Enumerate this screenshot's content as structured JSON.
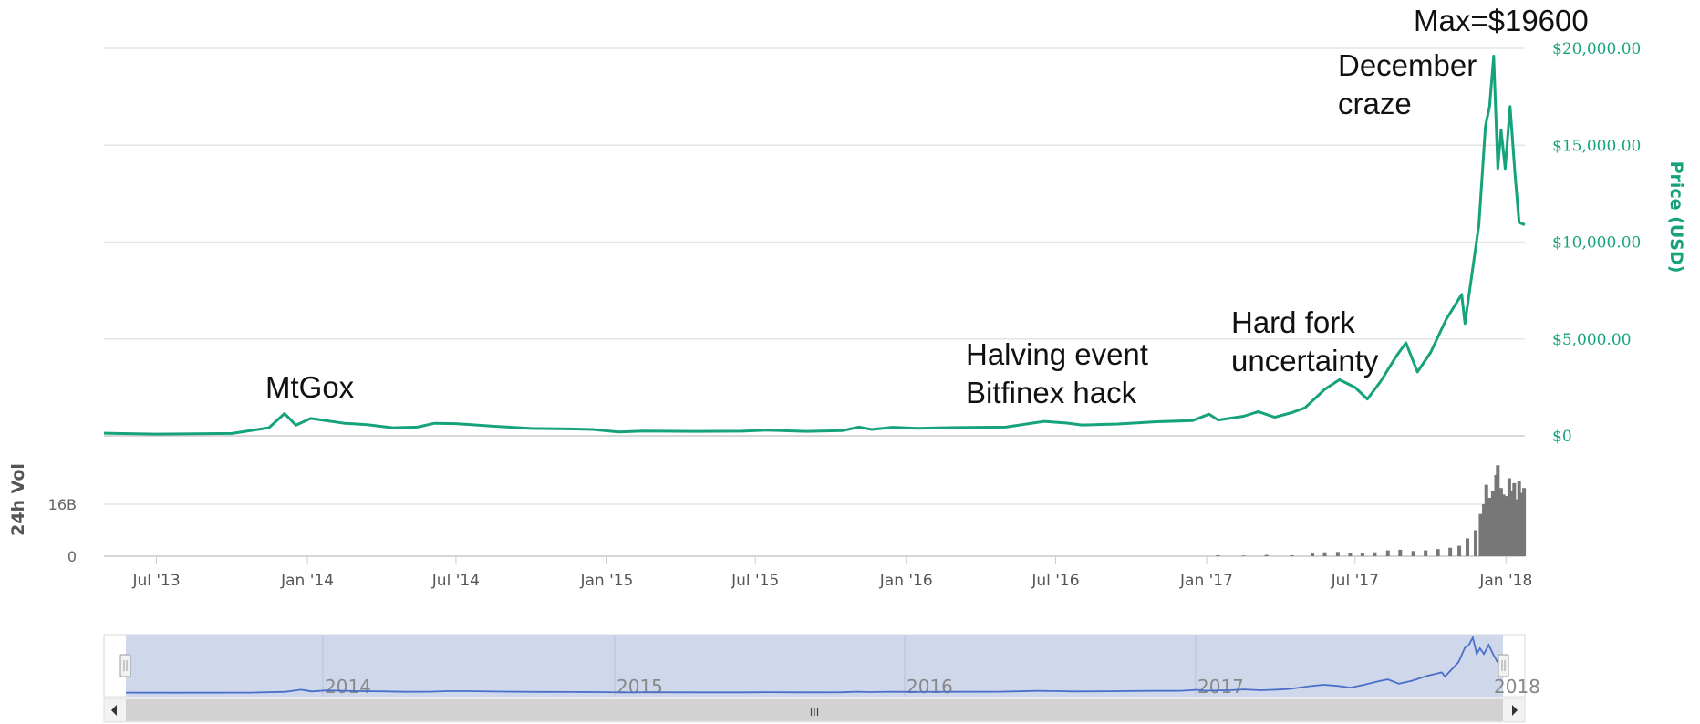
{
  "chart_data": {
    "type": "line",
    "price_axis_label": "Price (USD)",
    "volume_axis_label": "24h Vol",
    "price_ticks": [
      {
        "value": 0,
        "label": "$0"
      },
      {
        "value": 5000,
        "label": "$5,000.00"
      },
      {
        "value": 10000,
        "label": "$10,000.00"
      },
      {
        "value": 15000,
        "label": "$15,000.00"
      },
      {
        "value": 20000,
        "label": "$20,000.00"
      }
    ],
    "volume_ticks": [
      {
        "value": 0,
        "label": "0"
      },
      {
        "value": 16,
        "label": "16B"
      }
    ],
    "ylim": [
      0,
      20000
    ],
    "volume_ylim": [
      0,
      32
    ],
    "x_range": [
      "2013-04-28",
      "2018-01-24"
    ],
    "x_ticks": [
      {
        "date": "2013-07-01",
        "label": "Jul '13"
      },
      {
        "date": "2014-01-01",
        "label": "Jan '14"
      },
      {
        "date": "2014-07-01",
        "label": "Jul '14"
      },
      {
        "date": "2015-01-01",
        "label": "Jan '15"
      },
      {
        "date": "2015-07-01",
        "label": "Jul '15"
      },
      {
        "date": "2016-01-01",
        "label": "Jan '16"
      },
      {
        "date": "2016-07-01",
        "label": "Jul '16"
      },
      {
        "date": "2017-01-01",
        "label": "Jan '17"
      },
      {
        "date": "2017-07-01",
        "label": "Jul '17"
      },
      {
        "date": "2018-01-01",
        "label": "Jan '18"
      }
    ],
    "series": [
      {
        "color": "#16a37c",
        "points": [
          [
            "2013-04-28",
            135
          ],
          [
            "2013-07-01",
            90
          ],
          [
            "2013-10-01",
            120
          ],
          [
            "2013-11-15",
            420
          ],
          [
            "2013-11-25",
            800
          ],
          [
            "2013-12-04",
            1150
          ],
          [
            "2013-12-10",
            900
          ],
          [
            "2013-12-18",
            550
          ],
          [
            "2014-01-05",
            900
          ],
          [
            "2014-02-15",
            650
          ],
          [
            "2014-03-15",
            580
          ],
          [
            "2014-04-15",
            420
          ],
          [
            "2014-05-15",
            450
          ],
          [
            "2014-06-05",
            650
          ],
          [
            "2014-07-01",
            630
          ],
          [
            "2014-08-15",
            500
          ],
          [
            "2014-10-01",
            380
          ],
          [
            "2014-11-15",
            360
          ],
          [
            "2014-12-15",
            330
          ],
          [
            "2015-01-15",
            200
          ],
          [
            "2015-02-15",
            250
          ],
          [
            "2015-04-15",
            230
          ],
          [
            "2015-06-15",
            240
          ],
          [
            "2015-07-15",
            290
          ],
          [
            "2015-09-01",
            230
          ],
          [
            "2015-10-15",
            270
          ],
          [
            "2015-11-04",
            450
          ],
          [
            "2015-11-20",
            330
          ],
          [
            "2015-12-15",
            440
          ],
          [
            "2016-01-15",
            390
          ],
          [
            "2016-03-01",
            430
          ],
          [
            "2016-05-01",
            450
          ],
          [
            "2016-06-17",
            750
          ],
          [
            "2016-07-15",
            660
          ],
          [
            "2016-08-02",
            560
          ],
          [
            "2016-09-15",
            610
          ],
          [
            "2016-11-01",
            730
          ],
          [
            "2016-12-15",
            790
          ],
          [
            "2017-01-04",
            1120
          ],
          [
            "2017-01-15",
            820
          ],
          [
            "2017-02-15",
            1010
          ],
          [
            "2017-03-05",
            1250
          ],
          [
            "2017-03-25",
            960
          ],
          [
            "2017-04-15",
            1200
          ],
          [
            "2017-05-01",
            1450
          ],
          [
            "2017-05-25",
            2400
          ],
          [
            "2017-06-12",
            2900
          ],
          [
            "2017-07-01",
            2500
          ],
          [
            "2017-07-16",
            1900
          ],
          [
            "2017-08-01",
            2800
          ],
          [
            "2017-08-20",
            4100
          ],
          [
            "2017-09-01",
            4800
          ],
          [
            "2017-09-15",
            3300
          ],
          [
            "2017-10-01",
            4300
          ],
          [
            "2017-10-20",
            6000
          ],
          [
            "2017-11-08",
            7300
          ],
          [
            "2017-11-12",
            5800
          ],
          [
            "2017-11-29",
            10900
          ],
          [
            "2017-12-07",
            16000
          ],
          [
            "2017-12-12",
            17000
          ],
          [
            "2017-12-17",
            19600
          ],
          [
            "2017-12-22",
            13800
          ],
          [
            "2017-12-26",
            15800
          ],
          [
            "2017-12-31",
            13800
          ],
          [
            "2018-01-06",
            17000
          ],
          [
            "2018-01-12",
            13500
          ],
          [
            "2018-01-17",
            11000
          ],
          [
            "2018-01-24",
            10900
          ]
        ]
      }
    ],
    "volume_bars": [
      [
        "2017-01-15",
        0.3
      ],
      [
        "2017-02-15",
        0.2
      ],
      [
        "2017-03-15",
        0.4
      ],
      [
        "2017-04-15",
        0.3
      ],
      [
        "2017-05-10",
        0.9
      ],
      [
        "2017-05-25",
        1.2
      ],
      [
        "2017-06-10",
        1.3
      ],
      [
        "2017-06-25",
        1.1
      ],
      [
        "2017-07-10",
        1.0
      ],
      [
        "2017-07-25",
        1.2
      ],
      [
        "2017-08-10",
        1.8
      ],
      [
        "2017-08-25",
        2.0
      ],
      [
        "2017-09-10",
        1.6
      ],
      [
        "2017-09-25",
        1.8
      ],
      [
        "2017-10-10",
        2.2
      ],
      [
        "2017-10-25",
        2.6
      ],
      [
        "2017-11-05",
        3.2
      ],
      [
        "2017-11-15",
        5.5
      ],
      [
        "2017-11-25",
        8.0
      ],
      [
        "2017-12-01",
        13.0
      ],
      [
        "2017-12-05",
        16.0
      ],
      [
        "2017-12-08",
        22.0
      ],
      [
        "2017-12-12",
        18.0
      ],
      [
        "2017-12-16",
        20.0
      ],
      [
        "2017-12-20",
        25.0
      ],
      [
        "2017-12-22",
        28.0
      ],
      [
        "2017-12-26",
        21.0
      ],
      [
        "2017-12-29",
        19.0
      ],
      [
        "2018-01-02",
        18.5
      ],
      [
        "2018-01-05",
        24.0
      ],
      [
        "2018-01-08",
        20.0
      ],
      [
        "2018-01-11",
        22.5
      ],
      [
        "2018-01-14",
        17.5
      ],
      [
        "2018-01-17",
        23.0
      ],
      [
        "2018-01-20",
        19.5
      ],
      [
        "2018-01-23",
        21.0
      ]
    ],
    "annotations": [
      {
        "lines": [
          "MtGox"
        ],
        "date": "2014-01-15"
      },
      {
        "lines": [
          "Halving event",
          "Bitfinex hack"
        ],
        "date": "2016-07-15"
      },
      {
        "lines": [
          "Hard fork",
          "uncertainty"
        ],
        "date": "2017-07-15"
      },
      {
        "lines": [
          "December",
          "craze"
        ],
        "date": "2017-12-10"
      },
      {
        "lines": [
          "Max=$19600"
        ],
        "date": "2017-12-17"
      }
    ],
    "navigator": {
      "year_labels": [
        "2014",
        "2015",
        "2016",
        "2017",
        "2018"
      ],
      "scrollbar_grip": "III"
    },
    "grid": true
  }
}
